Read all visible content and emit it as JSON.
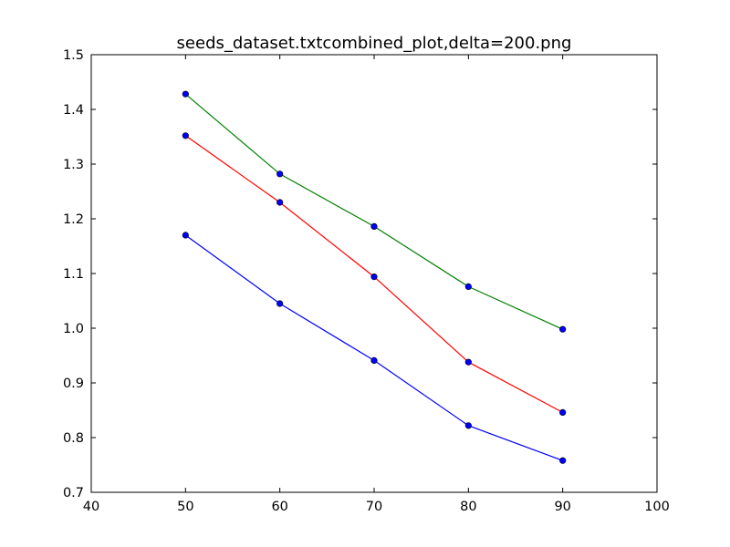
{
  "chart_data": {
    "type": "line",
    "title": "seeds_dataset.txtcombined_plot,delta=200.png",
    "xlabel": "",
    "ylabel": "",
    "xlim": [
      40,
      100
    ],
    "ylim": [
      0.7,
      1.5
    ],
    "xticks": [
      40,
      50,
      60,
      70,
      80,
      90,
      100
    ],
    "xtick_labels": [
      "40",
      "50",
      "60",
      "70",
      "80",
      "90",
      "100"
    ],
    "yticks": [
      0.7,
      0.8,
      0.9,
      1.0,
      1.1,
      1.2,
      1.3,
      1.4,
      1.5
    ],
    "ytick_labels": [
      "0.7",
      "0.8",
      "0.9",
      "1.0",
      "1.1",
      "1.2",
      "1.3",
      "1.4",
      "1.5"
    ],
    "grid": false,
    "legend": "none",
    "x": [
      50,
      60,
      70,
      80,
      90
    ],
    "series": [
      {
        "color": "#008000",
        "values": [
          1.428,
          1.282,
          1.186,
          1.076,
          0.998
        ]
      },
      {
        "color": "#ff0000",
        "values": [
          1.352,
          1.23,
          1.094,
          0.938,
          0.846
        ]
      },
      {
        "color": "#0000ff",
        "values": [
          1.17,
          1.045,
          0.941,
          0.822,
          0.758
        ]
      }
    ]
  }
}
